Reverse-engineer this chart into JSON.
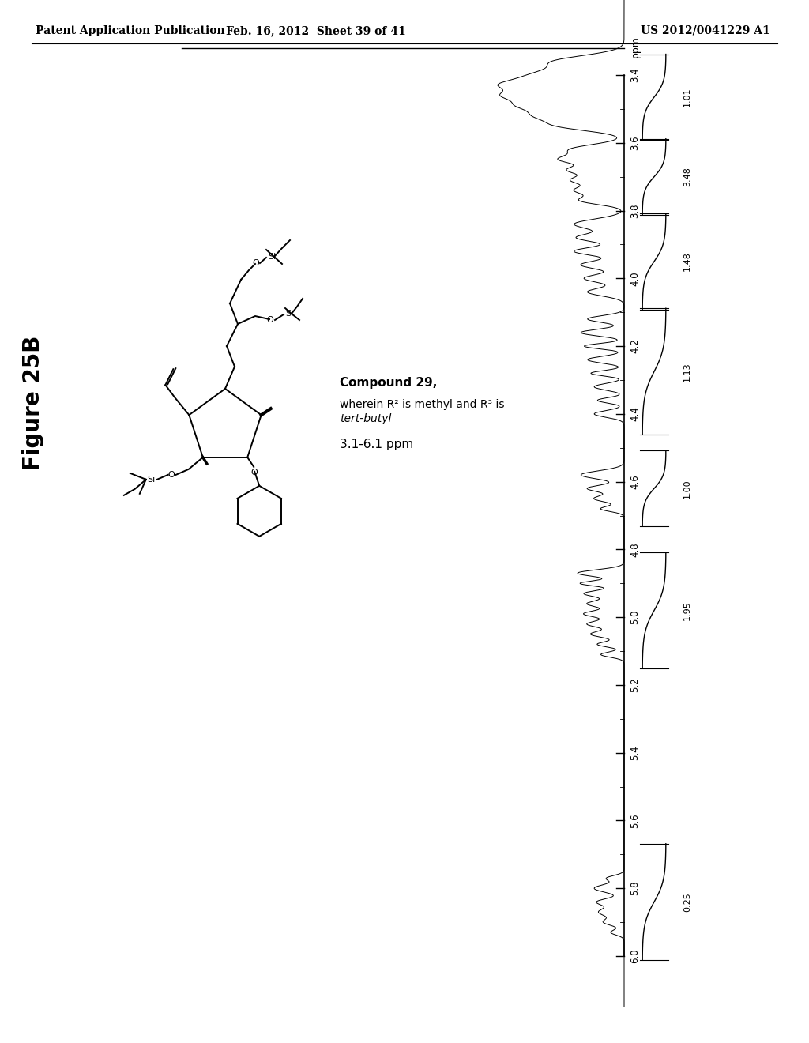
{
  "header_left": "Patent Application Publication",
  "header_mid": "Feb. 16, 2012  Sheet 39 of 41",
  "header_right": "US 2012/0041229 A1",
  "figure_label": "Figure 25B",
  "compound_text1": "Compound 29,",
  "compound_text2": "wherein R² is methyl and R³ is tert-butyl",
  "ppm_range_text": "3.1-6.1 ppm",
  "axis_ticks": [
    3.4,
    3.6,
    3.8,
    4.0,
    4.2,
    4.4,
    4.6,
    4.8,
    5.0,
    5.2,
    5.4,
    5.6,
    5.8,
    6.0
  ],
  "axis_label": "ppm",
  "integration_data": [
    {
      "ppm_lo": 5.68,
      "ppm_hi": 6.0,
      "value": "0.25"
    },
    {
      "ppm_lo": 4.82,
      "ppm_hi": 5.14,
      "value": "1.95"
    },
    {
      "ppm_lo": 4.52,
      "ppm_hi": 4.72,
      "value": "1.00"
    },
    {
      "ppm_lo": 4.1,
      "ppm_hi": 4.45,
      "value": "1.13"
    },
    {
      "ppm_lo": 3.82,
      "ppm_hi": 4.08,
      "value": "1.48"
    },
    {
      "ppm_lo": 3.6,
      "ppm_hi": 3.8,
      "value": "3.48"
    },
    {
      "ppm_lo": 3.35,
      "ppm_hi": 3.58,
      "value": "1.01"
    }
  ],
  "bg_color": "#ffffff",
  "text_color": "#000000"
}
